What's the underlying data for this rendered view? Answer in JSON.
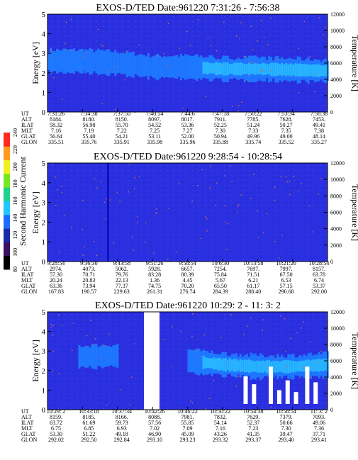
{
  "colors": {
    "background_blue": "#2a2fe0",
    "band_blue": "#1e78ff",
    "band_core": "#28b4ff",
    "noise_dots": "#c86a5a",
    "vertical_line": "#1010c0"
  },
  "colorbar": {
    "label": "Second Harmonic Current",
    "ticks": [
      "80",
      "100",
      "120",
      "140",
      "160",
      "180",
      "200",
      "220",
      "240"
    ],
    "colors": [
      "#000000",
      "#3a1060",
      "#1a2aa8",
      "#1e6cff",
      "#1ec8ff",
      "#1ed28c",
      "#78e61e",
      "#f0f01e",
      "#ff9a1e",
      "#ff2a1e"
    ]
  },
  "ephemeris_labels": [
    "UT",
    "ALT",
    "ILAT",
    "MLT",
    "GLAT",
    "GLON"
  ],
  "chart_data": [
    {
      "type": "heatmap",
      "title": "EXOS-D/TED   Date:961220  7:31:26 - 7:56:38",
      "ylabel": "Energy [eV]",
      "y2label": "Temperature [K]",
      "ylim": [
        0,
        5
      ],
      "y2lim": [
        0,
        12000
      ],
      "yticks": [
        "0",
        "1",
        "2",
        "3",
        "4",
        "5"
      ],
      "y2ticks": [
        "0",
        "2000",
        "4000",
        "6000",
        "8000",
        "10000",
        "12000"
      ],
      "band": {
        "center_ev": [
          2.6,
          2.6,
          2.5,
          2.3,
          2.3,
          2.2,
          2.2,
          2.15,
          2.1
        ],
        "bright_tail": true
      },
      "ephemeris": [
        [
          "7:31:26",
          "7:34:38",
          "7:37:50",
          "7:40:54",
          "7:44:6",
          "7:47:18",
          "7:50:22",
          "7:53:34",
          "7:56:38"
        ],
        [
          "8184.",
          "8180.",
          "8150.",
          "8097.",
          "8017.",
          "7911.",
          "7785.",
          "7628.",
          "7453."
        ],
        [
          "58.32",
          "56.98",
          "55.70",
          "54.52",
          "53.36",
          "52.25",
          "51.24",
          "50.27",
          "49.41"
        ],
        [
          "7.16",
          "7.19",
          "7.22",
          "7.25",
          "7.27",
          "7.30",
          "7.33",
          "7.35",
          "7.38"
        ],
        [
          "56.64",
          "55.40",
          "54.21",
          "53.11",
          "52.00",
          "50.94",
          "49.96",
          "49.00",
          "48.14"
        ],
        [
          "335.51",
          "335.76",
          "335.91",
          "335.98",
          "335.96",
          "335.88",
          "335.74",
          "335.52",
          "335.27"
        ]
      ]
    },
    {
      "type": "heatmap",
      "title": "EXOS-D/TED   Date:961220  9:28:54 - 10:28:54",
      "ylabel": "Energy [eV]",
      "y2label": "Temperature [K]",
      "ylim": [
        0,
        5
      ],
      "y2lim": [
        0,
        12000
      ],
      "yticks": [
        "0",
        "1",
        "2",
        "3",
        "4",
        "5"
      ],
      "y2ticks": [
        "0",
        "2000",
        "4000",
        "6000",
        "8000",
        "10000",
        "12000"
      ],
      "band": null,
      "ephemeris": [
        [
          "9:28:54",
          "9:36:30",
          "9:43:58",
          "9:51:26",
          "9:58:54",
          "10:6:30",
          "10:13:58",
          "10:21:26",
          "10:28:54"
        ],
        [
          "2974.",
          "4073.",
          "5062.",
          "5928.",
          "6657.",
          "7254.",
          "7697.",
          "7997.",
          "8157."
        ],
        [
          "57.30",
          "70.71",
          "79.76",
          "83.28",
          "80.39",
          "75.84",
          "71.51",
          "67.50",
          "63.78"
        ],
        [
          "20.24",
          "20.83",
          "22.13",
          "1.36",
          "4.45",
          "5.67",
          "6.21",
          "6.53",
          "6.74"
        ],
        [
          "63.36",
          "73.94",
          "77.37",
          "74.75",
          "70.20",
          "65.50",
          "61.17",
          "57.15",
          "53.37"
        ],
        [
          "167.83",
          "190.57",
          "229.63",
          "261.31",
          "276.74",
          "284.39",
          "288.40",
          "290.68",
          "292.00"
        ]
      ]
    },
    {
      "type": "heatmap",
      "title": "EXOS-D/TED   Date:961220  10:29: 2 - 11: 3: 2",
      "ylabel": "Energy [eV]",
      "y2label": "Temperature [K]",
      "ylim": [
        0,
        5
      ],
      "y2lim": [
        0,
        12000
      ],
      "yticks": [
        "0",
        "1",
        "2",
        "3",
        "4",
        "5"
      ],
      "y2ticks": [
        "0",
        "2000",
        "4000",
        "6000",
        "8000",
        "10000",
        "12000"
      ],
      "band": {
        "center_ev": [
          2.7,
          2.7,
          2.75,
          null,
          2.5,
          2.3,
          2.2,
          2.2,
          2.3
        ],
        "bright_tail": true
      },
      "ephemeris": [
        [
          "10:29: 2",
          "10:33:18",
          "10:37:34",
          "10:42:26",
          "10:46:22",
          "10:50:22",
          "10:54:38",
          "10:58:54",
          "11: 3: 2"
        ],
        [
          "8159.",
          "8185.",
          "8166.",
          "8088.",
          "7981.",
          "7832.",
          "7629.",
          "7379.",
          "7093."
        ],
        [
          "63.72",
          "61.69",
          "59.73",
          "57.56",
          "55.85",
          "54.14",
          "52.37",
          "50.66",
          "49.06"
        ],
        [
          "6.75",
          "6.85",
          "6.93",
          "7.02",
          "7.09",
          "7.16",
          "7.23",
          "7.30",
          "7.36"
        ],
        [
          "53.30",
          "51.22",
          "49.18",
          "46.90",
          "45.09",
          "43.26",
          "41.35",
          "39.47",
          "37.71"
        ],
        [
          "292.02",
          "292.50",
          "292.84",
          "293.10",
          "293.23",
          "293.32",
          "293.37",
          "293.40",
          "293.41"
        ]
      ]
    }
  ]
}
